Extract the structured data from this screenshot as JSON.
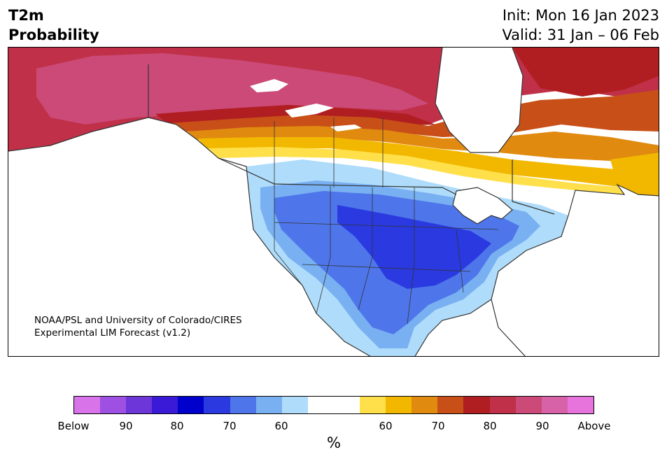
{
  "header": {
    "variable": "T2m",
    "product": "Probability",
    "init": "Init: Mon 16 Jan 2023",
    "valid": "Valid: 31 Jan – 06 Feb"
  },
  "credit": {
    "line1": "NOAA/PSL and University of Colorado/CIRES",
    "line2": "Experimental LIM Forecast (v1.2)"
  },
  "colorbar": {
    "unit": "%",
    "colors": [
      "#d873ea",
      "#9e50e2",
      "#6c36d8",
      "#3a1ad6",
      "#0000cc",
      "#2a3ae0",
      "#4e76ea",
      "#78b0f2",
      "#aedcfa",
      "#ffffff",
      "#ffffff",
      "#ffe04a",
      "#f2b800",
      "#e08a10",
      "#c85018",
      "#b01e22",
      "#c03048",
      "#cc4a78",
      "#d862a8",
      "#e674dc"
    ],
    "ticks": [
      "Below",
      "90",
      "80",
      "70",
      "60",
      "60",
      "70",
      "80",
      "90",
      "Above"
    ]
  },
  "map": {
    "colors": {
      "above_90": "#cc4a78",
      "above_80": "#c03048",
      "above_75": "#b01e22",
      "above_70": "#c85018",
      "above_65": "#e08a10",
      "above_60": "#f2b800",
      "above_55": "#ffe04a",
      "below_55": "#aedcfa",
      "below_60": "#78b0f2",
      "below_65": "#4e76ea",
      "below_70": "#2a3ae0",
      "water": "#ffffff",
      "border": "#333333"
    }
  }
}
